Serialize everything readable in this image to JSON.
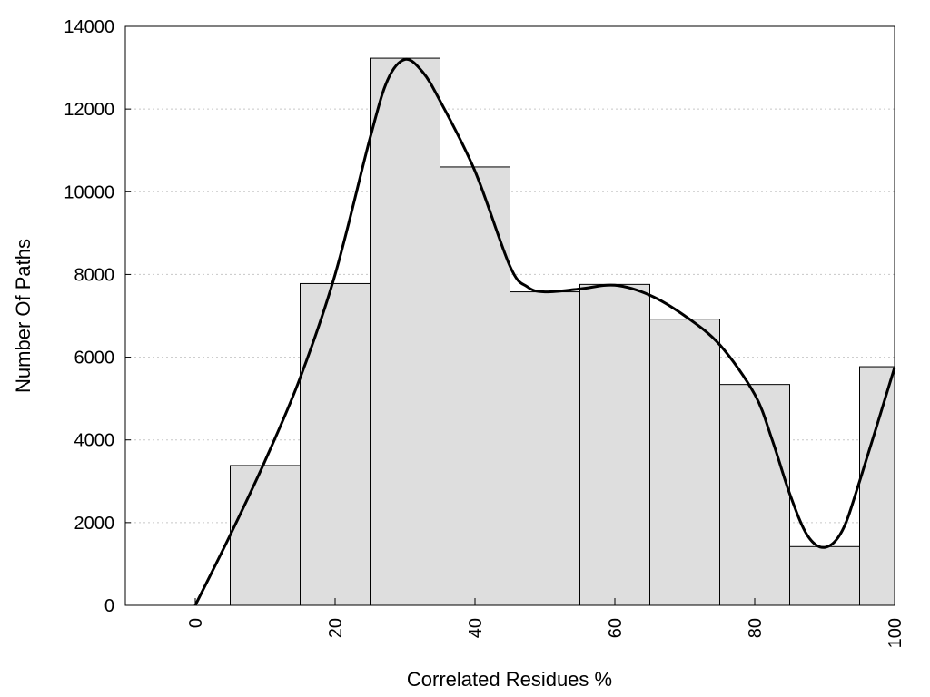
{
  "chart_data": {
    "type": "bar",
    "xlabel": "Correlated Residues %",
    "ylabel": "Number Of Paths",
    "xlim": [
      -10,
      100
    ],
    "ylim": [
      0,
      14000
    ],
    "x_ticks": [
      "0",
      "20",
      "40",
      "60",
      "80",
      "100"
    ],
    "y_ticks": [
      "0",
      "2000",
      "4000",
      "6000",
      "8000",
      "10000",
      "12000",
      "14000"
    ],
    "grid": "horizontal dotted",
    "bars": [
      {
        "x": 0,
        "value": 0
      },
      {
        "x": 10,
        "value": 3380
      },
      {
        "x": 20,
        "value": 7780
      },
      {
        "x": 30,
        "value": 13230
      },
      {
        "x": 40,
        "value": 10600
      },
      {
        "x": 50,
        "value": 7580
      },
      {
        "x": 60,
        "value": 7760
      },
      {
        "x": 70,
        "value": 6920
      },
      {
        "x": 80,
        "value": 5340
      },
      {
        "x": 90,
        "value": 1420
      },
      {
        "x": 100,
        "value": 5770
      }
    ],
    "bin_width": 10,
    "curve": {
      "x": [
        0,
        5,
        10,
        15,
        20,
        25,
        27.5,
        30,
        32.5,
        35,
        40,
        45,
        47.5,
        50,
        55,
        60,
        65,
        70,
        75,
        80,
        82.5,
        85,
        87.5,
        90,
        92.5,
        95,
        100
      ],
      "y": [
        0,
        1700,
        3500,
        5500,
        8000,
        11300,
        12700,
        13200,
        12900,
        12200,
        10500,
        8200,
        7700,
        7580,
        7650,
        7740,
        7500,
        7000,
        6300,
        5100,
        4000,
        2700,
        1700,
        1400,
        1800,
        3000,
        5750
      ]
    },
    "colors": {
      "bar_fill": "#dedede",
      "bar_stroke": "#000000",
      "curve": "#000000",
      "grid": "#c8c8c8"
    }
  }
}
